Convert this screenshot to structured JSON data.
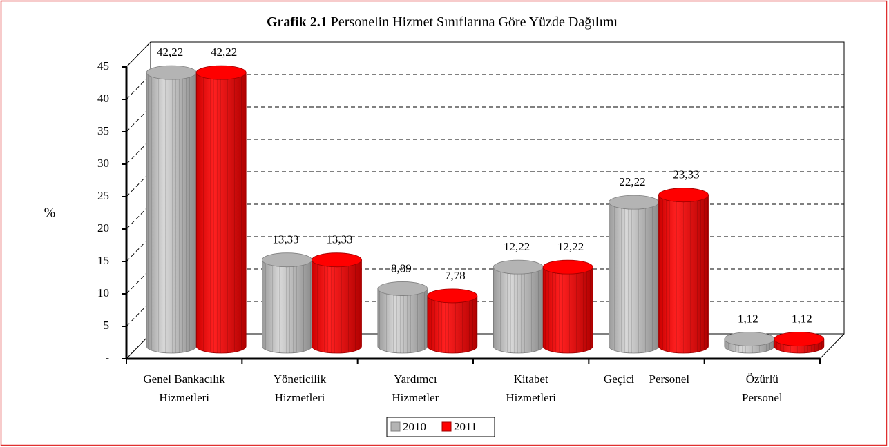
{
  "chart_data": {
    "type": "bar",
    "title": {
      "prefix": "Grafik 2.1",
      "text": "Personelin Hizmet Sınıflarına Göre Yüzde Dağılımı"
    },
    "y_label": "%",
    "categories": [
      [
        "Genel Bankacılık",
        "Hizmetleri"
      ],
      [
        "Yöneticilik",
        "Hizmetleri"
      ],
      [
        "Yardımcı",
        "Hizmetler"
      ],
      [
        "Kitabet",
        "Hizmetleri"
      ],
      [
        "Geçici     Personel"
      ],
      [
        "Özürlü",
        "Personel"
      ]
    ],
    "series": [
      {
        "name": "2010",
        "color": "#b4b4b4",
        "values": [
          42.22,
          13.33,
          8.89,
          12.22,
          22.22,
          1.12
        ],
        "value_labels": [
          "42,22",
          "13,33",
          "8,89",
          "12,22",
          "22,22",
          "1,12"
        ]
      },
      {
        "name": "2011",
        "color": "#ff0000",
        "values": [
          42.22,
          13.33,
          7.78,
          12.22,
          23.33,
          1.12
        ],
        "value_labels": [
          "42,22",
          "13,33",
          "7,78",
          "12,22",
          "23,33",
          "1,12"
        ]
      }
    ],
    "ylim": [
      0,
      45
    ],
    "yticks": [
      {
        "value": 0,
        "label": "-"
      },
      5,
      10,
      15,
      20,
      25,
      30,
      35,
      40,
      45
    ],
    "grid": true,
    "legend": "bottom"
  }
}
